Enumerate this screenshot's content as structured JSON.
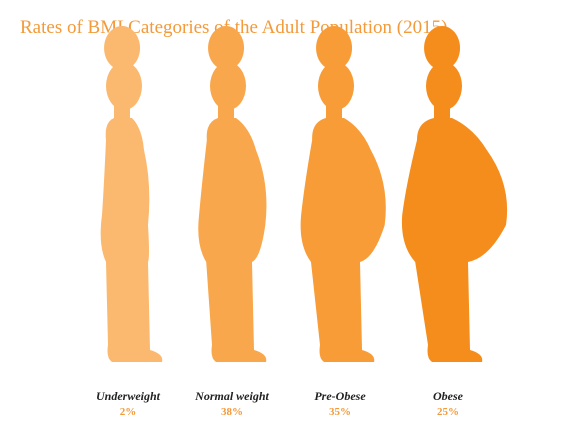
{
  "chart_data": {
    "type": "pictogram",
    "title": "Rates of BMI Categories of the Adult Population (2015)",
    "categories": [
      "Underweight",
      "Normal weight",
      "Pre-Obese",
      "Obese"
    ],
    "values": [
      2,
      38,
      35,
      25
    ],
    "value_labels": [
      "2%",
      "38%",
      "35%",
      "25%"
    ],
    "colors": [
      "#fbb96f",
      "#f9a74c",
      "#f89c38",
      "#f58d1d"
    ]
  }
}
